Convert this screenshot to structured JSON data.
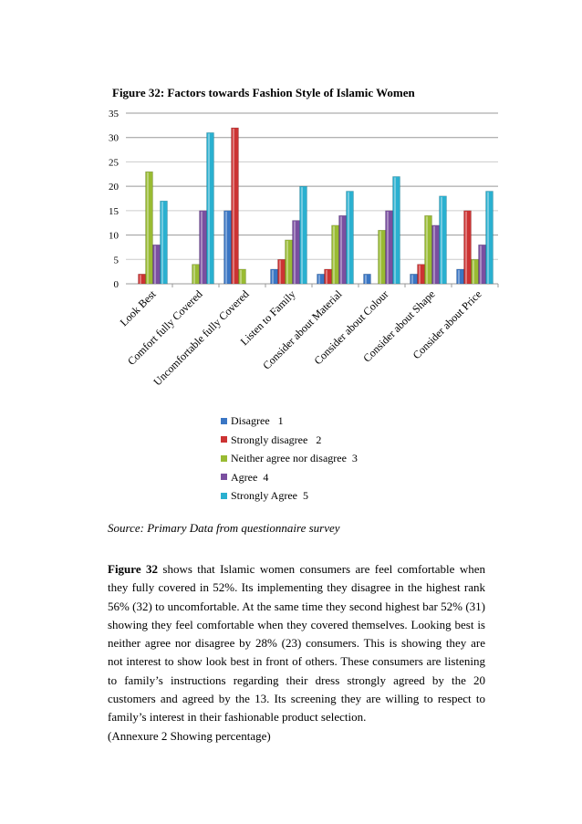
{
  "figure_title": "Figure 32: Factors towards Fashion Style of Islamic Women",
  "chart_data": {
    "type": "bar",
    "title": "Figure 32: Factors towards Fashion Style of Islamic Women",
    "categories": [
      "Look Best",
      "Comfort fully Covered",
      "Uncomfortable fully Covered",
      "Listen to Family",
      "Consider about Material",
      "Consider about  Colour",
      "Consider about Shape",
      "Consider about Price"
    ],
    "ylim": [
      0,
      35
    ],
    "yticks": [
      0,
      5,
      10,
      15,
      20,
      25,
      30,
      35
    ],
    "grid": true,
    "legend_position": "bottom",
    "series": [
      {
        "name": "Disagree   1",
        "color": "#3a76c4",
        "values": [
          0,
          0,
          15,
          3,
          2,
          2,
          2,
          3
        ]
      },
      {
        "name": "Strongly disagree   2",
        "color": "#cc3333",
        "values": [
          2,
          0,
          32,
          5,
          3,
          0,
          4,
          15
        ]
      },
      {
        "name": "Neither agree nor disagree  3",
        "color": "#99bb33",
        "values": [
          23,
          4,
          3,
          9,
          12,
          11,
          14,
          5
        ]
      },
      {
        "name": "Agree  4",
        "color": "#7a4fa0",
        "values": [
          8,
          15,
          0,
          13,
          14,
          15,
          12,
          8
        ]
      },
      {
        "name": "Strongly Agree  5",
        "color": "#2ab0d0",
        "values": [
          17,
          31,
          0,
          20,
          19,
          22,
          18,
          19
        ]
      }
    ]
  },
  "source": "Source: Primary Data from questionnaire survey",
  "body": {
    "lead": "Figure 32",
    "text": " shows that Islamic women consumers are feel comfortable when they fully covered in 52%. Its implementing they disagree in the highest rank 56% (32) to uncomfortable. At the same time they second highest bar 52% (31) showing they feel comfortable when they covered themselves. Looking best is neither agree nor disagree by 28% (23) consumers. This is showing they are not interest to show look best in front of others.  These consumers are listening to family’s instructions regarding their dress strongly agreed by the 20 customers and agreed by the 13. Its screening they are willing to respect to family’s interest in their fashionable product selection.",
    "annex": "(Annexure 2 Showing percentage)"
  }
}
